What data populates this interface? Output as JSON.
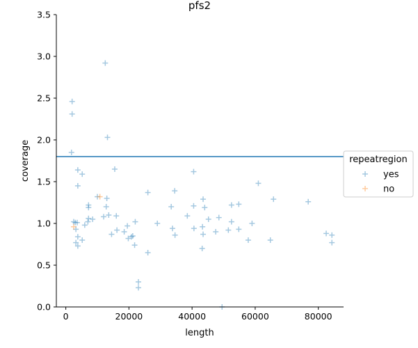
{
  "chart_data": {
    "type": "scatter",
    "title": "pfs2",
    "xlabel": "length",
    "ylabel": "coverage",
    "xlim": [
      -3000,
      88000
    ],
    "ylim": [
      0,
      3.5
    ],
    "xticks": [
      0,
      20000,
      40000,
      60000,
      80000
    ],
    "xtick_labels": [
      "0",
      "20000",
      "40000",
      "60000",
      "80000"
    ],
    "yticks": [
      0.0,
      0.5,
      1.0,
      1.5,
      2.0,
      2.5,
      3.0,
      3.5
    ],
    "ytick_labels": [
      "0.0",
      "0.5",
      "1.0",
      "1.5",
      "2.0",
      "2.5",
      "3.0",
      "3.5"
    ],
    "marker": "+",
    "grid": false,
    "reference_line": {
      "orientation": "horizontal",
      "y": 1.8,
      "color": "#1f77b4"
    },
    "legend": {
      "title": "repeatregion",
      "placement": "right"
    },
    "series": [
      {
        "name": "yes",
        "color": "#1f77b4",
        "points": [
          [
            12500,
            2.92
          ],
          [
            2000,
            2.46
          ],
          [
            2000,
            2.31
          ],
          [
            13200,
            2.03
          ],
          [
            1800,
            1.85
          ],
          [
            40500,
            1.62
          ],
          [
            3800,
            1.64
          ],
          [
            15500,
            1.65
          ],
          [
            5200,
            1.59
          ],
          [
            61000,
            1.48
          ],
          [
            3800,
            1.45
          ],
          [
            26000,
            1.37
          ],
          [
            34500,
            1.39
          ],
          [
            10000,
            1.32
          ],
          [
            13000,
            1.3
          ],
          [
            43500,
            1.29
          ],
          [
            65800,
            1.29
          ],
          [
            76800,
            1.26
          ],
          [
            52500,
            1.22
          ],
          [
            54800,
            1.23
          ],
          [
            7200,
            1.22
          ],
          [
            7200,
            1.19
          ],
          [
            12800,
            1.2
          ],
          [
            33400,
            1.2
          ],
          [
            40500,
            1.21
          ],
          [
            44000,
            1.19
          ],
          [
            12000,
            1.08
          ],
          [
            13600,
            1.1
          ],
          [
            16000,
            1.09
          ],
          [
            38500,
            1.09
          ],
          [
            8500,
            1.05
          ],
          [
            7000,
            1.02
          ],
          [
            7200,
            1.06
          ],
          [
            48500,
            1.07
          ],
          [
            45200,
            1.05
          ],
          [
            2500,
            1.02
          ],
          [
            3000,
            1.01
          ],
          [
            3600,
            1.01
          ],
          [
            22000,
            1.02
          ],
          [
            29000,
            1.0
          ],
          [
            52500,
            1.02
          ],
          [
            59000,
            1.0
          ],
          [
            6000,
            0.98
          ],
          [
            19500,
            0.97
          ],
          [
            43300,
            0.96
          ],
          [
            3200,
            0.93
          ],
          [
            16200,
            0.92
          ],
          [
            14500,
            0.87
          ],
          [
            18500,
            0.9
          ],
          [
            40600,
            0.94
          ],
          [
            33800,
            0.94
          ],
          [
            47500,
            0.9
          ],
          [
            51500,
            0.92
          ],
          [
            54800,
            0.93
          ],
          [
            21200,
            0.85
          ],
          [
            20800,
            0.84
          ],
          [
            34600,
            0.86
          ],
          [
            43500,
            0.87
          ],
          [
            82500,
            0.88
          ],
          [
            84300,
            0.86
          ],
          [
            3800,
            0.84
          ],
          [
            5200,
            0.8
          ],
          [
            19800,
            0.82
          ],
          [
            57800,
            0.8
          ],
          [
            64800,
            0.8
          ],
          [
            3200,
            0.77
          ],
          [
            3800,
            0.73
          ],
          [
            21800,
            0.74
          ],
          [
            84300,
            0.77
          ],
          [
            43200,
            0.7
          ],
          [
            26000,
            0.65
          ],
          [
            23000,
            0.3
          ],
          [
            23000,
            0.23
          ],
          [
            49500,
            0.0
          ]
        ]
      },
      {
        "name": "no",
        "color": "#ff7f0e",
        "points": [
          [
            10800,
            1.32
          ],
          [
            2500,
            0.96
          ]
        ]
      }
    ]
  }
}
